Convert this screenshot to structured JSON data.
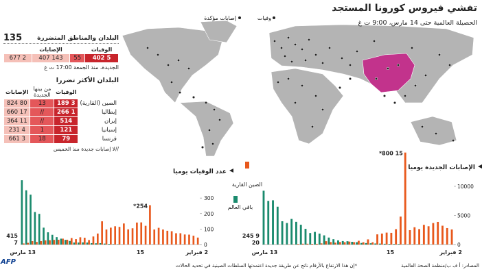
{
  "header": {
    "title": "تفشي فيروس كورونا المستجد",
    "subtitle": "الحصيلة العالمية حتى 14 مارس، 9:00 ت غ"
  },
  "map_legend": {
    "deaths": "وفيات",
    "cases": "إصابات مؤكدة"
  },
  "summary": {
    "label": "البلدان والمناطق المتضررة",
    "count": "135",
    "columns": [
      "الوفيات",
      "الإصابات"
    ],
    "totals": [
      "5 402",
      "143 407"
    ],
    "new": [
      "55",
      "2 677"
    ],
    "new_note": "الجديدة، منذ الجمعة 17:00 ت غ"
  },
  "table": {
    "title": "البلدان الأكثر تضررا",
    "columns": [
      "الوفيات",
      "من بينها الجديدة",
      "الإصابات"
    ],
    "rows": [
      [
        "الصين (القارية)",
        "3 189",
        "13",
        "80 824"
      ],
      [
        "إيطاليا",
        "1 266",
        "//",
        "17 660"
      ],
      [
        "إيران",
        "514",
        "//",
        "11 364"
      ],
      [
        "إسبانيا",
        "121",
        "1",
        "4 231"
      ],
      [
        "فرنسا",
        "79",
        "18",
        "3 661"
      ]
    ],
    "footnote": "//لا إصابات جديدة منذ الخميس"
  },
  "chart_data": [
    {
      "type": "bar",
      "title": "عدد الوفيات يوميا",
      "categories": [
        "2 فبراير",
        null,
        null,
        null,
        null,
        null,
        null,
        null,
        null,
        null,
        null,
        null,
        null,
        "15",
        null,
        null,
        null,
        null,
        null,
        null,
        null,
        null,
        null,
        null,
        null,
        null,
        null,
        null,
        null,
        null,
        null,
        null,
        null,
        null,
        null,
        null,
        null,
        null,
        null,
        null,
        "13 مارس"
      ],
      "series": [
        {
          "name": "الصين القارية",
          "color": "#e8581c",
          "values": [
            45,
            57,
            64,
            65,
            73,
            73,
            86,
            89,
            97,
            108,
            97,
            254,
            121,
            143,
            142,
            105,
            98,
            136,
            114,
            118,
            109,
            97,
            150,
            71,
            52,
            29,
            44,
            47,
            35,
            42,
            31,
            38,
            31,
            30,
            28,
            27,
            22,
            17,
            22,
            11,
            7
          ],
          "value_labels": [
            null,
            null,
            null,
            null,
            null,
            null,
            null,
            null,
            null,
            null,
            null,
            "254*",
            null,
            null,
            null,
            null,
            null,
            null,
            null,
            null,
            null,
            null,
            null,
            null,
            null,
            null,
            null,
            null,
            null,
            null,
            null,
            null,
            null,
            null,
            null,
            null,
            null,
            null,
            null,
            null,
            "7"
          ]
        },
        {
          "name": "باقي العالم",
          "color": "#1a8a6d",
          "values": [
            0,
            0,
            0,
            1,
            0,
            0,
            0,
            0,
            1,
            0,
            1,
            0,
            0,
            1,
            1,
            0,
            0,
            1,
            2,
            3,
            4,
            6,
            9,
            8,
            9,
            13,
            14,
            13,
            13,
            23,
            30,
            38,
            48,
            63,
            79,
            109,
            198,
            210,
            322,
            350,
            415
          ],
          "value_labels": [
            null,
            null,
            null,
            null,
            null,
            null,
            null,
            null,
            null,
            null,
            null,
            null,
            null,
            null,
            null,
            null,
            null,
            null,
            null,
            null,
            null,
            null,
            null,
            null,
            null,
            null,
            null,
            null,
            null,
            null,
            null,
            null,
            null,
            null,
            null,
            null,
            null,
            null,
            null,
            null,
            "415"
          ]
        }
      ],
      "ylim": [
        0,
        420
      ],
      "yticks": [
        0,
        100,
        200,
        300
      ]
    },
    {
      "type": "bar",
      "title": "الإصابات الجديدة يوميا",
      "categories": [
        "2 فبراير",
        null,
        null,
        null,
        null,
        null,
        null,
        null,
        null,
        null,
        null,
        null,
        null,
        "15",
        null,
        null,
        null,
        null,
        null,
        null,
        null,
        null,
        null,
        null,
        null,
        null,
        null,
        null,
        null,
        null,
        null,
        null,
        null,
        null,
        null,
        null,
        null,
        null,
        null,
        null,
        "13 مارس"
      ],
      "series": [
        {
          "color": "#e8581c",
          "values": [
            2590,
            2829,
            3235,
            3884,
            3694,
            3143,
            3385,
            2652,
            2973,
            2467,
            15800,
            4800,
            2641,
            2008,
            2048,
            1886,
            1749,
            391,
            889,
            397,
            648,
            409,
            508,
            406,
            433,
            327,
            427,
            573,
            202,
            125,
            119,
            139,
            143,
            99,
            44,
            40,
            19,
            24,
            15,
            8,
            20
          ],
          "value_labels": [
            null,
            null,
            null,
            null,
            null,
            null,
            null,
            null,
            null,
            null,
            "15 800*",
            null,
            null,
            null,
            null,
            null,
            null,
            null,
            null,
            null,
            null,
            null,
            null,
            null,
            null,
            null,
            null,
            null,
            null,
            null,
            null,
            null,
            null,
            null,
            null,
            null,
            null,
            null,
            null,
            null,
            "20"
          ]
        },
        {
          "color": "#1a8a6d",
          "values": [
            20,
            17,
            20,
            25,
            25,
            30,
            60,
            50,
            45,
            45,
            55,
            95,
            100,
            110,
            130,
            160,
            180,
            220,
            250,
            270,
            400,
            470,
            570,
            600,
            720,
            920,
            1200,
            1580,
            1880,
            2170,
            1980,
            2700,
            3400,
            3900,
            4400,
            3700,
            4000,
            6500,
            7600,
            7500,
            9245
          ],
          "value_labels": [
            null,
            null,
            null,
            null,
            null,
            null,
            null,
            null,
            null,
            null,
            null,
            null,
            null,
            null,
            null,
            null,
            null,
            null,
            null,
            null,
            null,
            null,
            null,
            null,
            null,
            null,
            null,
            null,
            null,
            null,
            null,
            null,
            null,
            null,
            null,
            null,
            null,
            null,
            null,
            null,
            "9 245"
          ]
        }
      ],
      "ylim": [
        0,
        12000
      ],
      "yticks": [
        0,
        5000,
        10000
      ]
    }
  ],
  "footer": {
    "source": "المصادر: أ ف ب/منظمة الصحة العالمية",
    "note": "*إن هذا الارتفاع بالأرقام ناتج عن طريقة جديدة اعتمدتها السلطات الصينية في تحديد الحالات",
    "logo": "AFP"
  }
}
